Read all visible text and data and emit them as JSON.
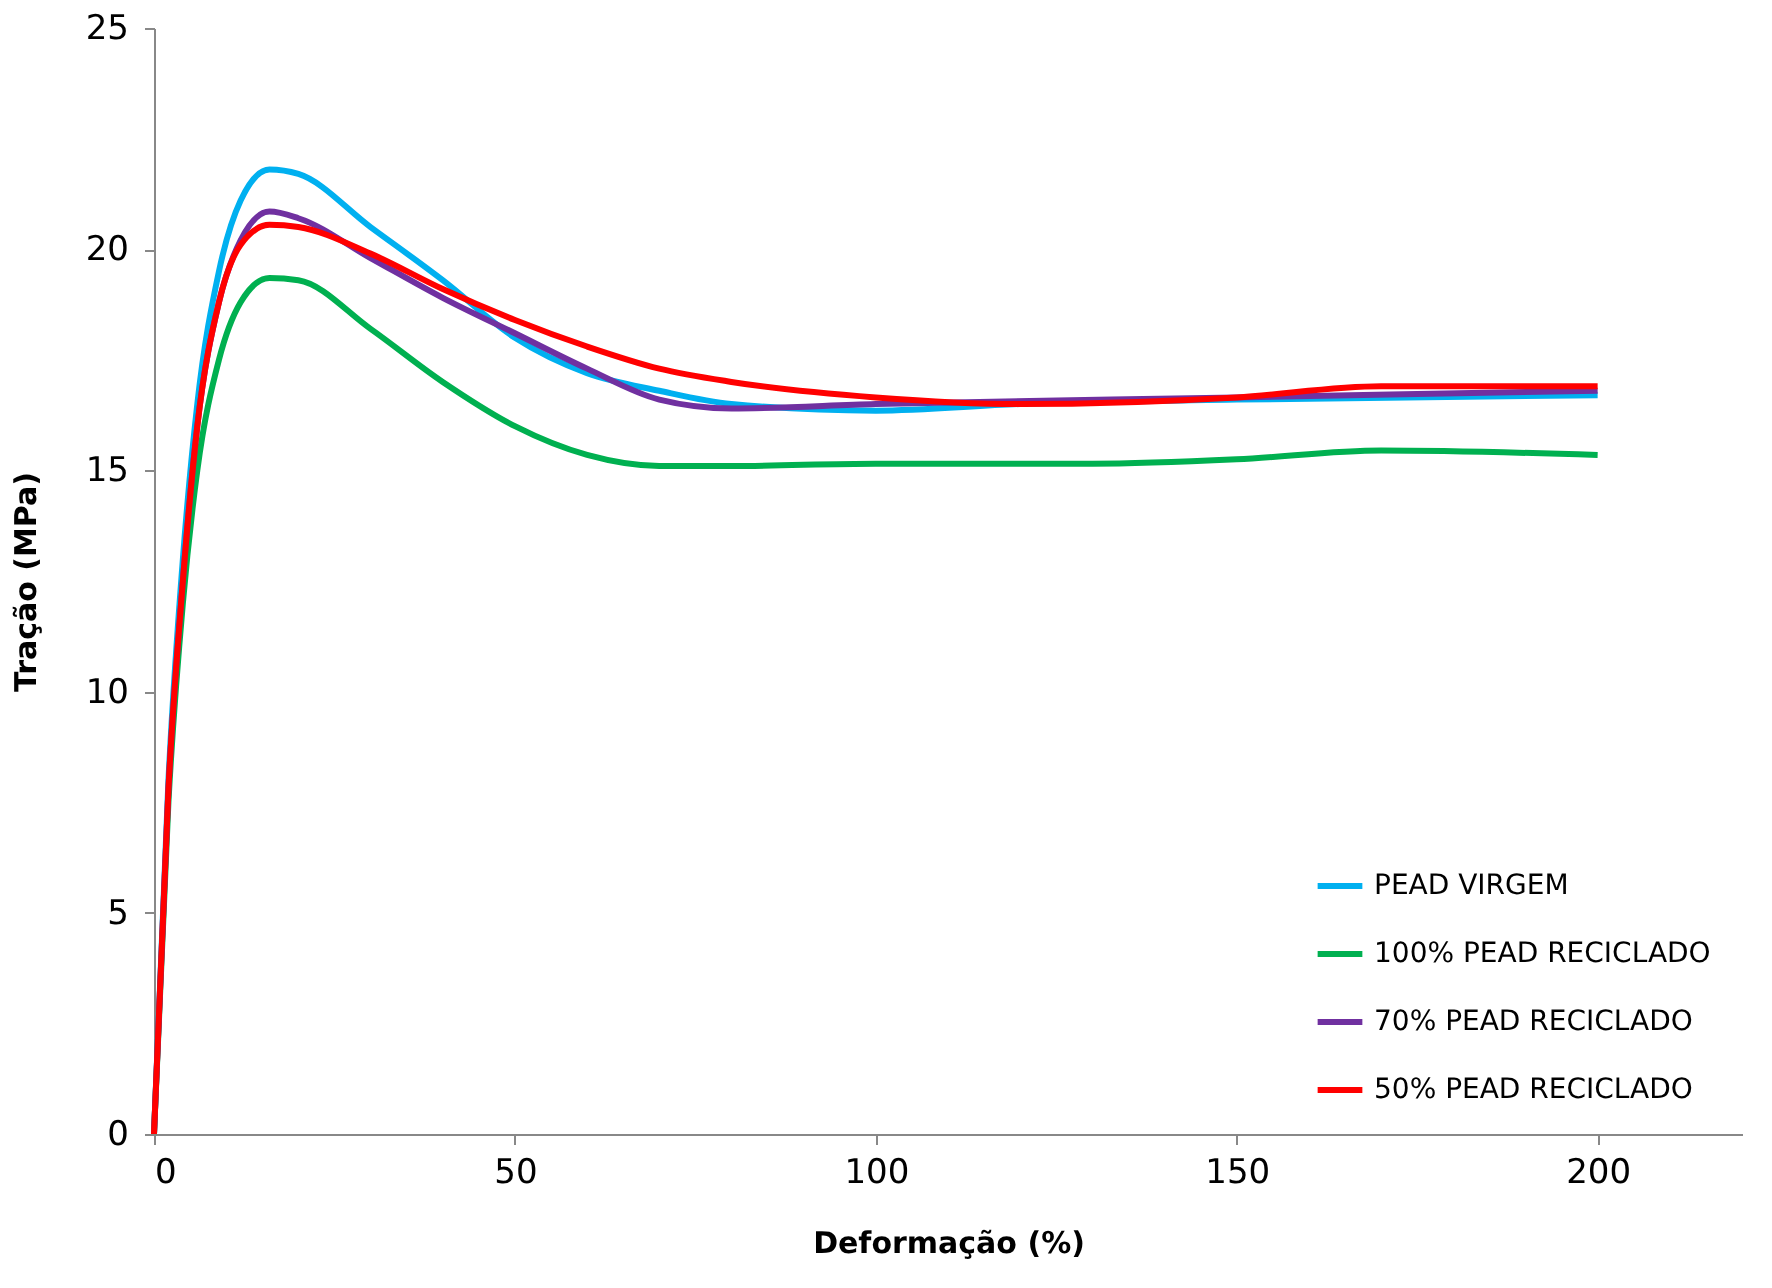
{
  "chart_data": {
    "type": "line",
    "xlabel": "Deformação (%)",
    "ylabel": "Tração (MPa)",
    "xlim": [
      0,
      220
    ],
    "xticks": [
      0,
      50,
      100,
      150,
      200
    ],
    "ylim": [
      0,
      25
    ],
    "yticks": [
      0,
      5,
      10,
      15,
      20,
      25
    ],
    "grid": false,
    "legend": "bottom right",
    "marker": "none",
    "line_style": "solid",
    "series": [
      {
        "name": "PEAD VIRGEM",
        "color": "#00b0f0",
        "x": [
          0,
          2,
          4,
          6,
          9,
          12,
          16,
          20,
          30,
          40,
          50,
          60,
          70,
          80,
          100,
          120,
          150,
          200
        ],
        "values": [
          0,
          8,
          13,
          16.5,
          19.5,
          21.1,
          21.8,
          21.7,
          20.5,
          19.3,
          18,
          17.2,
          16.8,
          16.5,
          16.35,
          16.5,
          16.6,
          16.7
        ]
      },
      {
        "name": "100% PEAD RECICLADO",
        "color": "#00b050",
        "x": [
          0,
          2,
          4,
          6,
          9,
          12,
          16,
          20,
          30,
          40,
          50,
          60,
          70,
          80,
          100,
          130,
          150,
          170,
          200
        ],
        "values": [
          0,
          7.5,
          12,
          15,
          17.5,
          18.8,
          19.35,
          19.3,
          18.2,
          17,
          16,
          15.35,
          15.1,
          15.1,
          15.15,
          15.15,
          15.25,
          15.45,
          15.35
        ]
      },
      {
        "name": "70% PEAD RECICLADO",
        "color": "#7030a0",
        "x": [
          0,
          2,
          4,
          6,
          9,
          12,
          16,
          20,
          30,
          40,
          50,
          60,
          70,
          80,
          100,
          150,
          200
        ],
        "values": [
          0,
          7.8,
          12.5,
          16,
          18.8,
          20.2,
          20.85,
          20.7,
          19.8,
          18.9,
          18.1,
          17.3,
          16.6,
          16.4,
          16.5,
          16.65,
          16.8
        ]
      },
      {
        "name": "50% PEAD RECICLADO",
        "color": "#ff0000",
        "x": [
          0,
          2,
          4,
          6,
          9,
          12,
          16,
          20,
          30,
          40,
          50,
          60,
          70,
          80,
          100,
          120,
          150,
          170,
          200
        ],
        "values": [
          0,
          7.8,
          12.5,
          16,
          18.8,
          20.1,
          20.55,
          20.5,
          19.9,
          19.1,
          18.4,
          17.8,
          17.3,
          17,
          16.65,
          16.5,
          16.65,
          16.9,
          16.9
        ]
      }
    ]
  }
}
